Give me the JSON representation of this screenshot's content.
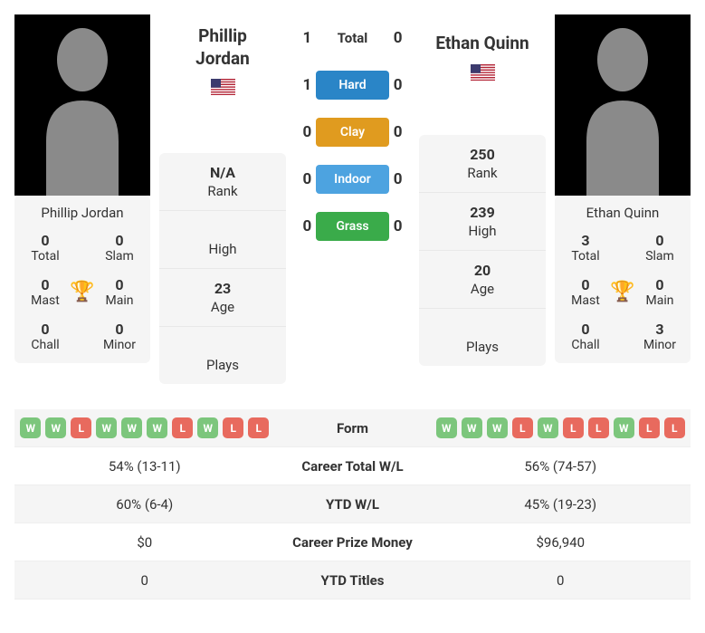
{
  "player_a": {
    "name": "Phillip Jordan",
    "name_lines": [
      "Phillip",
      "Jordan"
    ],
    "flag_country": "US",
    "rank": "N/A",
    "high": "",
    "age": "23",
    "plays": "",
    "titles": {
      "total": "0",
      "slam": "0",
      "mast": "0",
      "main": "0",
      "chall": "0",
      "minor": "0"
    },
    "form": [
      "W",
      "W",
      "L",
      "W",
      "W",
      "W",
      "L",
      "W",
      "L",
      "L"
    ],
    "career_wl": "54% (13-11)",
    "ytd_wl": "60% (6-4)",
    "prize": "$0",
    "ytd_titles": "0"
  },
  "player_b": {
    "name": "Ethan Quinn",
    "name_lines": [
      "Ethan Quinn"
    ],
    "flag_country": "US",
    "rank": "250",
    "high": "239",
    "age": "20",
    "plays": "",
    "titles": {
      "total": "3",
      "slam": "0",
      "mast": "0",
      "main": "0",
      "chall": "0",
      "minor": "3"
    },
    "form": [
      "W",
      "W",
      "W",
      "L",
      "W",
      "L",
      "L",
      "W",
      "L",
      "L"
    ],
    "career_wl": "56% (74-57)",
    "ytd_wl": "45% (19-23)",
    "prize": "$96,940",
    "ytd_titles": "0"
  },
  "surfaces": {
    "total": {
      "label": "Total",
      "a": "1",
      "b": "0",
      "color": null
    },
    "hard": {
      "label": "Hard",
      "a": "1",
      "b": "0",
      "color": "#2a85c7"
    },
    "clay": {
      "label": "Clay",
      "a": "0",
      "b": "0",
      "color": "#e09b1f"
    },
    "indoor": {
      "label": "Indoor",
      "a": "0",
      "b": "0",
      "color": "#4da3e0"
    },
    "grass": {
      "label": "Grass",
      "a": "0",
      "b": "0",
      "color": "#3aab4a"
    }
  },
  "labels": {
    "rank": "Rank",
    "high": "High",
    "age": "Age",
    "plays": "Plays",
    "total": "Total",
    "slam": "Slam",
    "mast": "Mast",
    "main": "Main",
    "chall": "Chall",
    "minor": "Minor",
    "form": "Form",
    "career_wl": "Career Total W/L",
    "ytd_wl": "YTD W/L",
    "prize": "Career Prize Money",
    "ytd_titles": "YTD Titles"
  },
  "colors": {
    "form_win": "#7cc67c",
    "form_loss": "#e86a5e",
    "shaded_row": "#f5f5f5",
    "border": "#eeeeee",
    "trophy": "#6a8fd8"
  }
}
